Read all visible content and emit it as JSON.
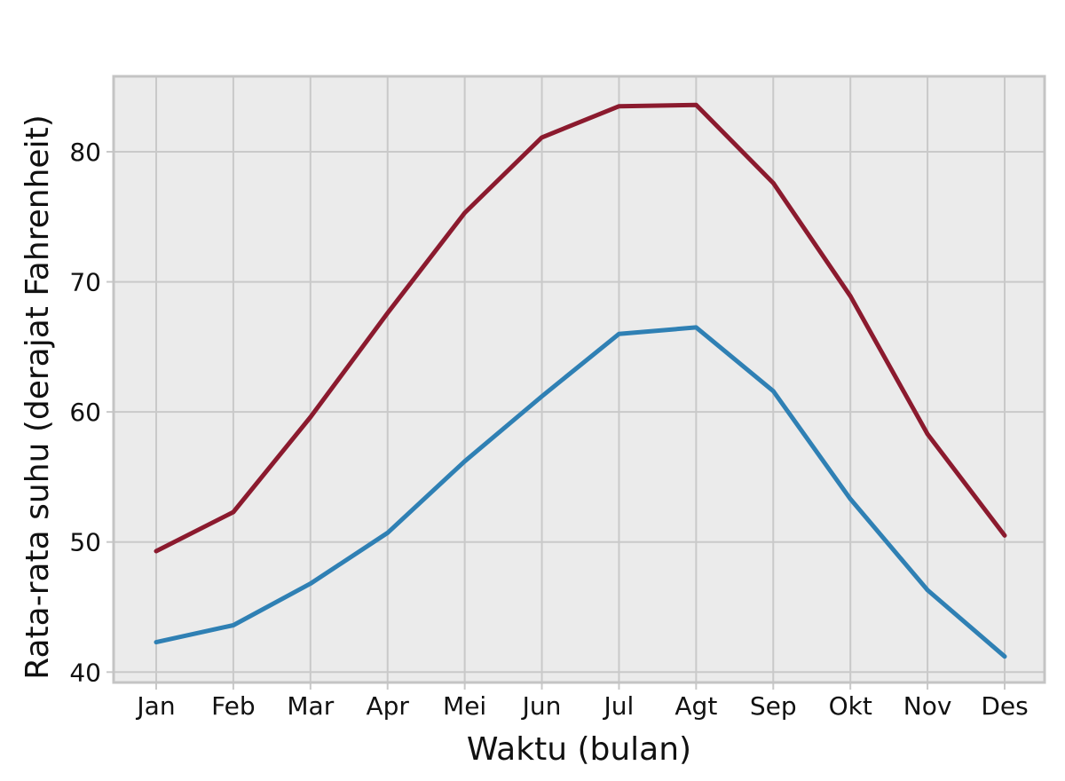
{
  "chart_data": {
    "type": "line",
    "title": "",
    "xlabel": "Waktu (bulan)",
    "ylabel": "Rata-rata suhu (derajat Fahrenheit)",
    "categories": [
      "Jan",
      "Feb",
      "Mar",
      "Apr",
      "Mei",
      "Jun",
      "Jul",
      "Agt",
      "Sep",
      "Okt",
      "Nov",
      "Des"
    ],
    "ylim": [
      39.2,
      85.8
    ],
    "yticks": [
      40,
      50,
      60,
      70,
      80
    ],
    "ytick_labels": [
      "40",
      "50",
      "60",
      "70",
      "80"
    ],
    "grid": true,
    "legend": "none",
    "series": [
      {
        "color": "#8b1a2e",
        "values": [
          49.3,
          52.3,
          59.6,
          67.6,
          75.3,
          81.1,
          83.5,
          83.6,
          77.6,
          68.9,
          58.3,
          50.5
        ]
      },
      {
        "color": "#2f80b4",
        "values": [
          42.3,
          43.6,
          46.8,
          50.7,
          56.2,
          61.2,
          66.0,
          66.5,
          61.6,
          53.3,
          46.3,
          41.2
        ]
      }
    ],
    "colors": {
      "plot_background": "#ebebeb",
      "grid": "#c9c9c9",
      "frame": "#c4c4c4"
    }
  }
}
